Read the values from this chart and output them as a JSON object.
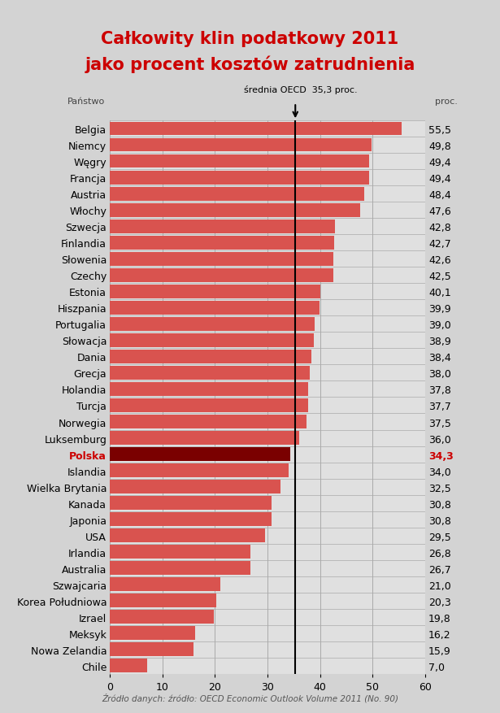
{
  "title_line1": "Całkowity klin podatkowy 2011",
  "title_line2": "jako procent kosztów zatrudnienia",
  "xlabel_left": "Państwo",
  "xlabel_right": "proc.",
  "source": "Źródło danych: źródło: OECD Economic Outlook Volume 2011 (No. 90)",
  "oecd_mean": 35.3,
  "oecd_mean_label": "średnia OECD  35,3 proc.",
  "countries": [
    "Belgia",
    "Niemcy",
    "Węgry",
    "Francja",
    "Austria",
    "Włochy",
    "Szwecja",
    "Finlandia",
    "Słowenia",
    "Czechy",
    "Estonia",
    "Hiszpania",
    "Portugalia",
    "Słowacja",
    "Dania",
    "Grecja",
    "Holandia",
    "Turcja",
    "Norwegia",
    "Luksemburg",
    "Polska",
    "Islandia",
    "Wielka Brytania",
    "Kanada",
    "Japonia",
    "USA",
    "Irlandia",
    "Australia",
    "Szwajcaria",
    "Korea Południowa",
    "Izrael",
    "Meksyk",
    "Nowa Zelandia",
    "Chile"
  ],
  "values": [
    55.5,
    49.8,
    49.4,
    49.4,
    48.4,
    47.6,
    42.8,
    42.7,
    42.6,
    42.5,
    40.1,
    39.9,
    39.0,
    38.9,
    38.4,
    38.0,
    37.8,
    37.7,
    37.5,
    36.0,
    34.3,
    34.0,
    32.5,
    30.8,
    30.8,
    29.5,
    26.8,
    26.7,
    21.0,
    20.3,
    19.8,
    16.2,
    15.9,
    7.0
  ],
  "bar_color_normal": "#d9534f",
  "bar_color_polska": "#7a0000",
  "polska_index": 20,
  "polska_label_color": "#cc0000",
  "title_color": "#cc0000",
  "bg_color": "#d3d3d3",
  "plot_bg_color": "#e0e0e0",
  "grid_color": "#aaaaaa",
  "xlim": [
    0,
    60
  ],
  "xticks": [
    0,
    10,
    20,
    30,
    40,
    50,
    60
  ],
  "bar_height": 0.82
}
